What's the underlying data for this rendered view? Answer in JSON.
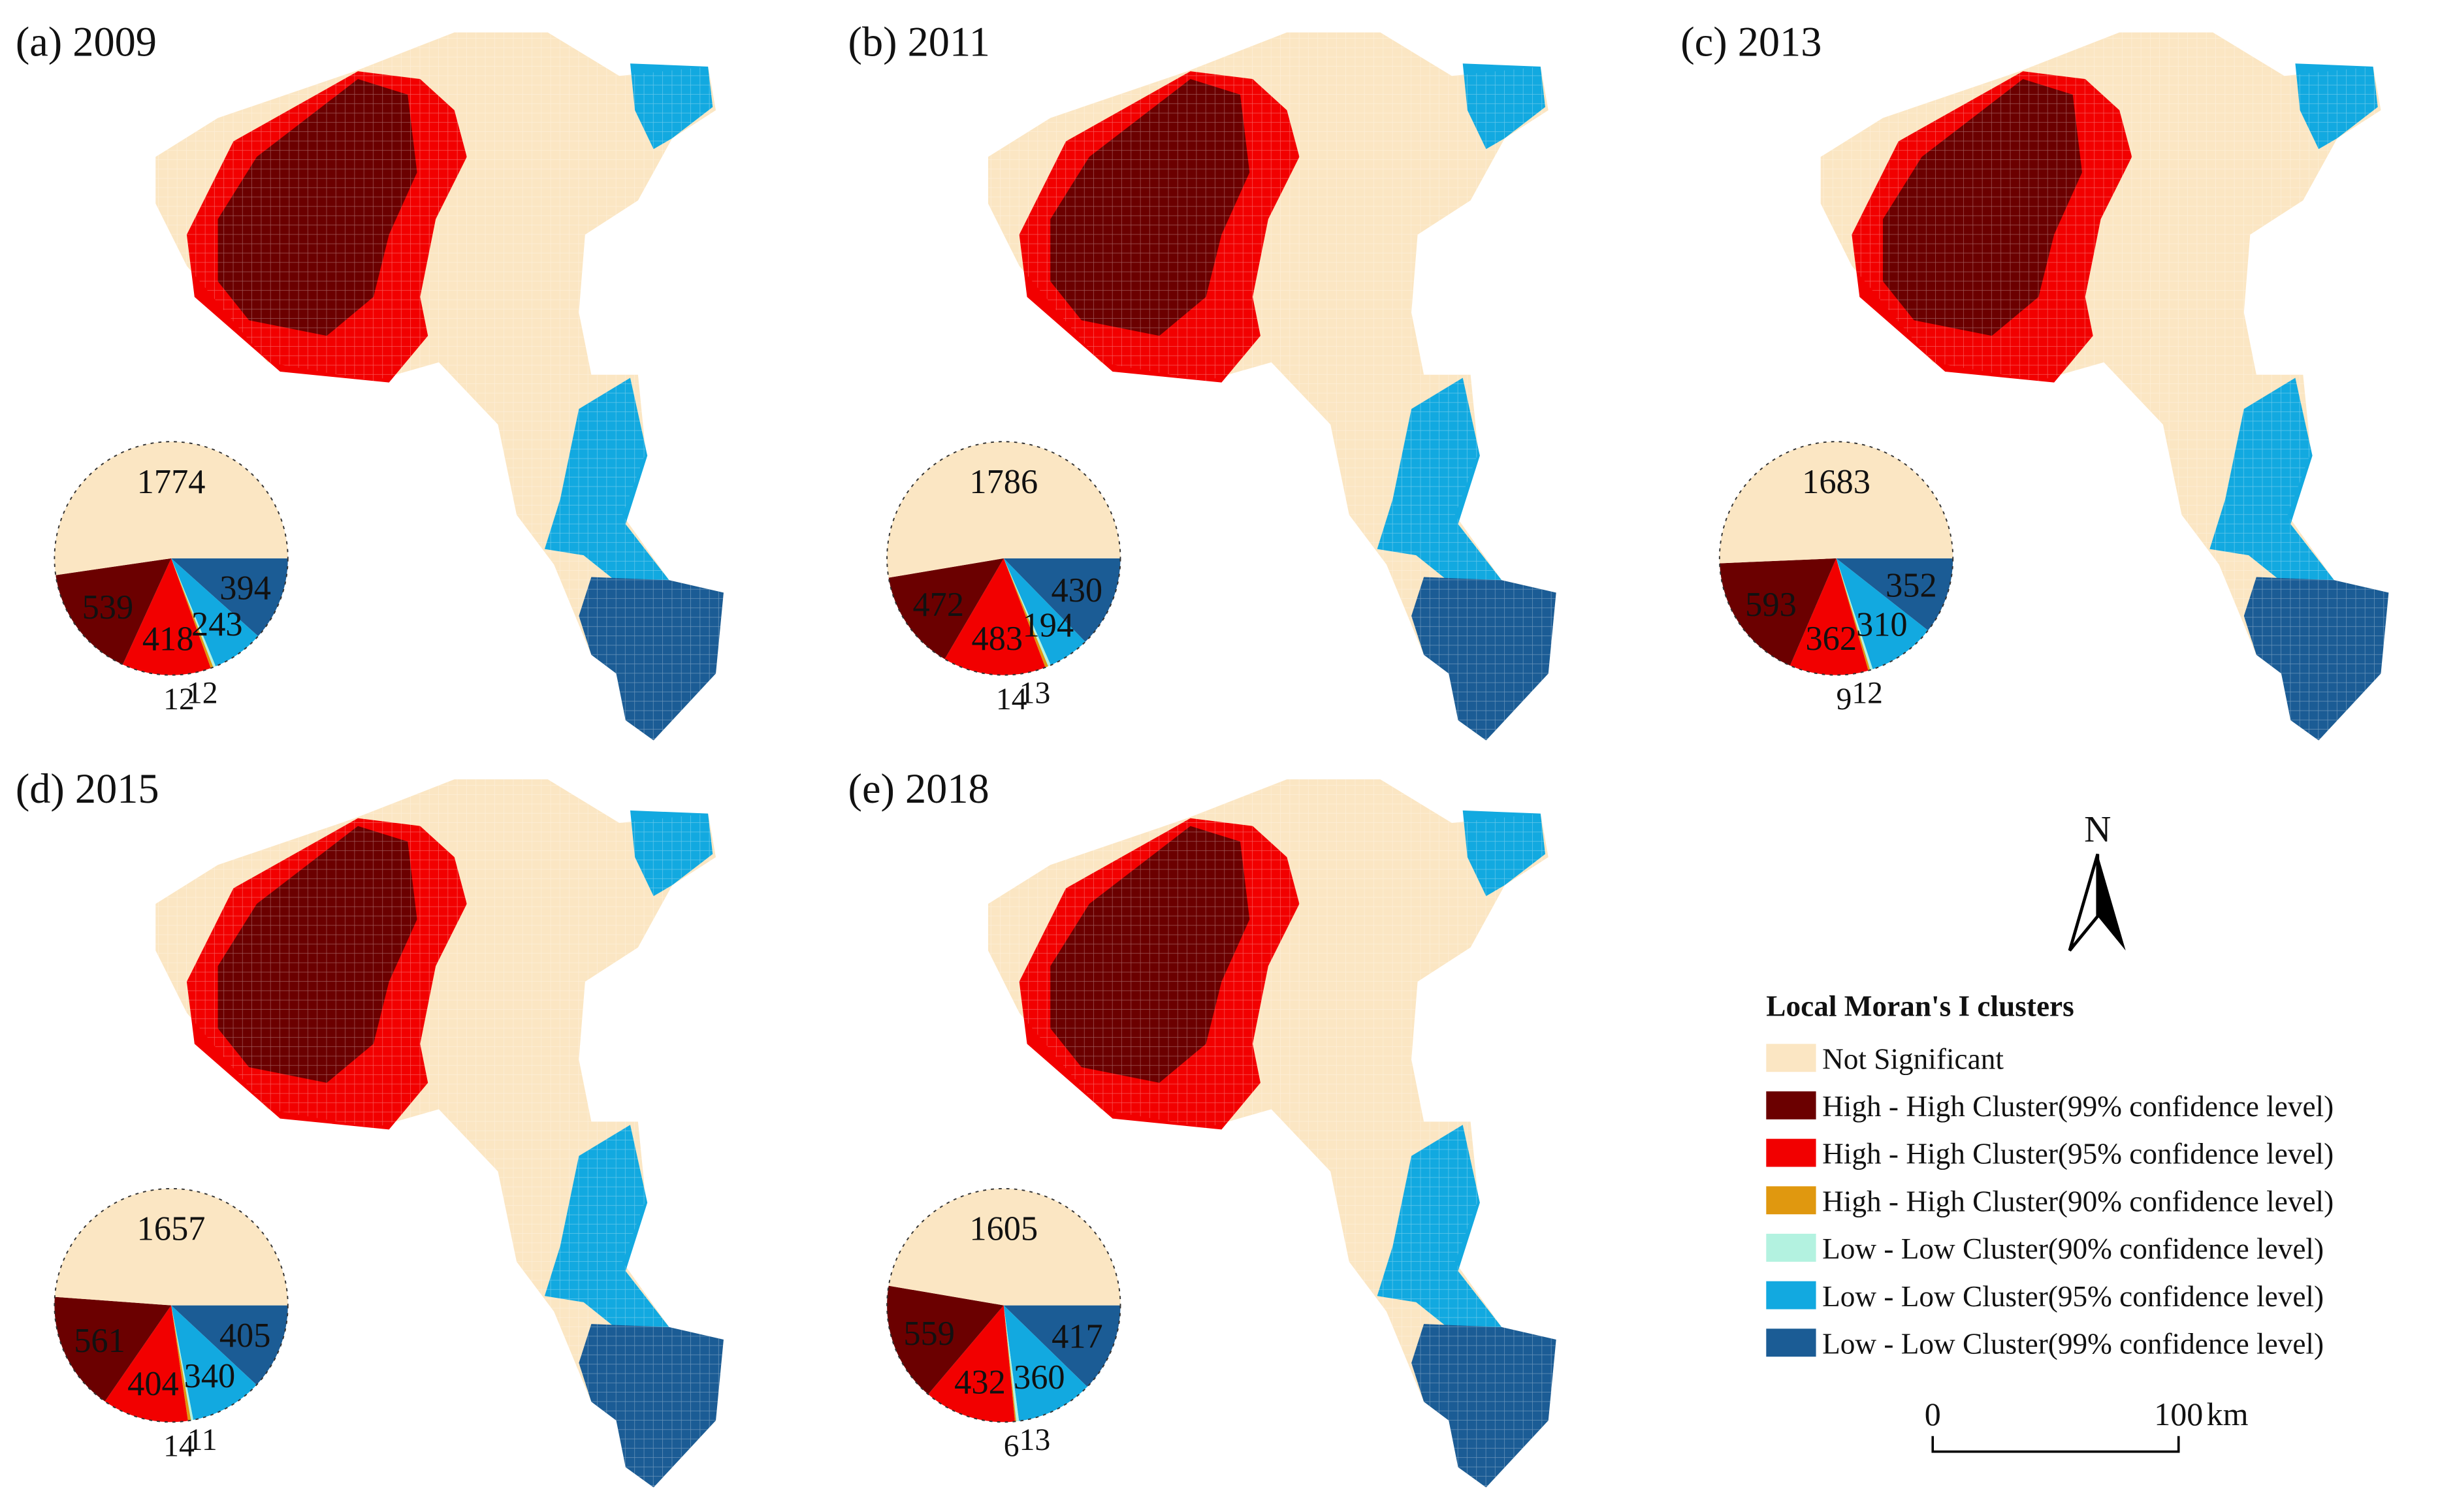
{
  "figure": {
    "panels": [
      {
        "label": "(a) 2009",
        "counts": {
          "not_significant": 1774,
          "hh99": 539,
          "hh95": 418,
          "hh90": 12,
          "ll90": 12,
          "ll95": 243,
          "ll99": 394
        }
      },
      {
        "label": "(b) 2011",
        "counts": {
          "not_significant": 1786,
          "hh99": 472,
          "hh95": 483,
          "hh90": 14,
          "ll90": 13,
          "ll95": 194,
          "ll99": 430
        }
      },
      {
        "label": "(c) 2013",
        "counts": {
          "not_significant": 1683,
          "hh99": 593,
          "hh95": 362,
          "hh90": 9,
          "ll90": 12,
          "ll95": 310,
          "ll99": 352
        }
      },
      {
        "label": "(d) 2015",
        "counts": {
          "not_significant": 1657,
          "hh99": 561,
          "hh95": 404,
          "hh90": 14,
          "ll90": 11,
          "ll95": 340,
          "ll99": 405
        }
      },
      {
        "label": "(e) 2018",
        "counts": {
          "not_significant": 1605,
          "hh99": 559,
          "hh95": 432,
          "hh90": 6,
          "ll90": 13,
          "ll95": 360,
          "ll99": 417
        }
      }
    ],
    "legend": {
      "title": "Local Moran's I clusters",
      "items": [
        {
          "key": "not_significant",
          "label": "Not Significant",
          "color": "#fbe6c3"
        },
        {
          "key": "hh99",
          "label": "High - High Cluster(99% confidence level)",
          "color": "#6b0000"
        },
        {
          "key": "hh95",
          "label": "High - High Cluster(95% confidence level)",
          "color": "#f20000"
        },
        {
          "key": "hh90",
          "label": "High - High Cluster(90% confidence level)",
          "color": "#e0980f"
        },
        {
          "key": "ll90",
          "label": "Low - Low Cluster(90% confidence level)",
          "color": "#b3f2e0"
        },
        {
          "key": "ll95",
          "label": "Low - Low Cluster(95% confidence level)",
          "color": "#12a9e0"
        },
        {
          "key": "ll99",
          "label": "Low - Low Cluster(99% confidence level)",
          "color": "#1b5c95"
        }
      ]
    },
    "north_arrow": {
      "label": "N",
      "icon": "north-arrow-icon"
    },
    "scale_bar": {
      "start": "0",
      "end": "100",
      "unit": "km"
    }
  }
}
